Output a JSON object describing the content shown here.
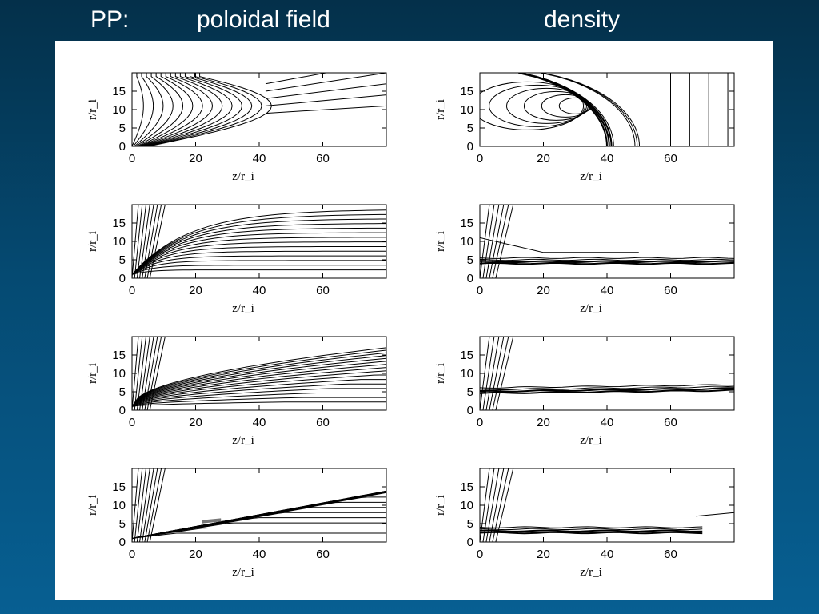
{
  "header": {
    "prefix": "PP:",
    "left_title": "poloidal field",
    "right_title": "density"
  },
  "colors": {
    "background_top": "#04304a",
    "background_bottom": "#075f92",
    "panel": "#ffffff",
    "header_text": "#ffffff"
  },
  "chart_data": [
    {
      "type": "contour",
      "column": "poloidal field",
      "row": 1,
      "xlabel": "z/r_i",
      "ylabel": "r/r_i",
      "xticks": [
        "0",
        "20",
        "40",
        "60"
      ],
      "yticks": [
        "0",
        "5",
        "10",
        "15"
      ],
      "xlim": [
        0,
        80
      ],
      "ylim": [
        0,
        20
      ]
    },
    {
      "type": "contour",
      "column": "density",
      "row": 1,
      "xlabel": "z/r_i",
      "ylabel": "r/r_i",
      "xticks": [
        "0",
        "20",
        "40",
        "60"
      ],
      "yticks": [
        "0",
        "5",
        "10",
        "15"
      ],
      "xlim": [
        0,
        80
      ],
      "ylim": [
        0,
        20
      ]
    },
    {
      "type": "contour",
      "column": "poloidal field",
      "row": 2,
      "xlabel": "z/r_i",
      "ylabel": "r/r_i",
      "xticks": [
        "0",
        "20",
        "40",
        "60"
      ],
      "yticks": [
        "0",
        "5",
        "10",
        "15"
      ],
      "xlim": [
        0,
        80
      ],
      "ylim": [
        0,
        20
      ]
    },
    {
      "type": "contour",
      "column": "density",
      "row": 2,
      "xlabel": "z/r_i",
      "ylabel": "r/r_i",
      "xticks": [
        "0",
        "20",
        "40",
        "60"
      ],
      "yticks": [
        "0",
        "5",
        "10",
        "15"
      ],
      "xlim": [
        0,
        80
      ],
      "ylim": [
        0,
        20
      ]
    },
    {
      "type": "contour",
      "column": "poloidal field",
      "row": 3,
      "xlabel": "z/r_i",
      "ylabel": "r/r_i",
      "xticks": [
        "0",
        "20",
        "40",
        "60"
      ],
      "yticks": [
        "0",
        "5",
        "10",
        "15"
      ],
      "xlim": [
        0,
        80
      ],
      "ylim": [
        0,
        20
      ]
    },
    {
      "type": "contour",
      "column": "density",
      "row": 3,
      "xlabel": "z/r_i",
      "ylabel": "r/r_i",
      "xticks": [
        "0",
        "20",
        "40",
        "60"
      ],
      "yticks": [
        "0",
        "5",
        "10",
        "15"
      ],
      "xlim": [
        0,
        80
      ],
      "ylim": [
        0,
        20
      ]
    },
    {
      "type": "contour",
      "column": "poloidal field",
      "row": 4,
      "xlabel": "z/r_i",
      "ylabel": "r/r_i",
      "xticks": [
        "0",
        "20",
        "40",
        "60"
      ],
      "yticks": [
        "0",
        "5",
        "10",
        "15"
      ],
      "xlim": [
        0,
        80
      ],
      "ylim": [
        0,
        20
      ]
    },
    {
      "type": "contour",
      "column": "density",
      "row": 4,
      "xlabel": "z/r_i",
      "ylabel": "r/r_i",
      "xticks": [
        "0",
        "20",
        "40",
        "60"
      ],
      "yticks": [
        "0",
        "5",
        "10",
        "15"
      ],
      "xlim": [
        0,
        80
      ],
      "ylim": [
        0,
        20
      ]
    }
  ]
}
